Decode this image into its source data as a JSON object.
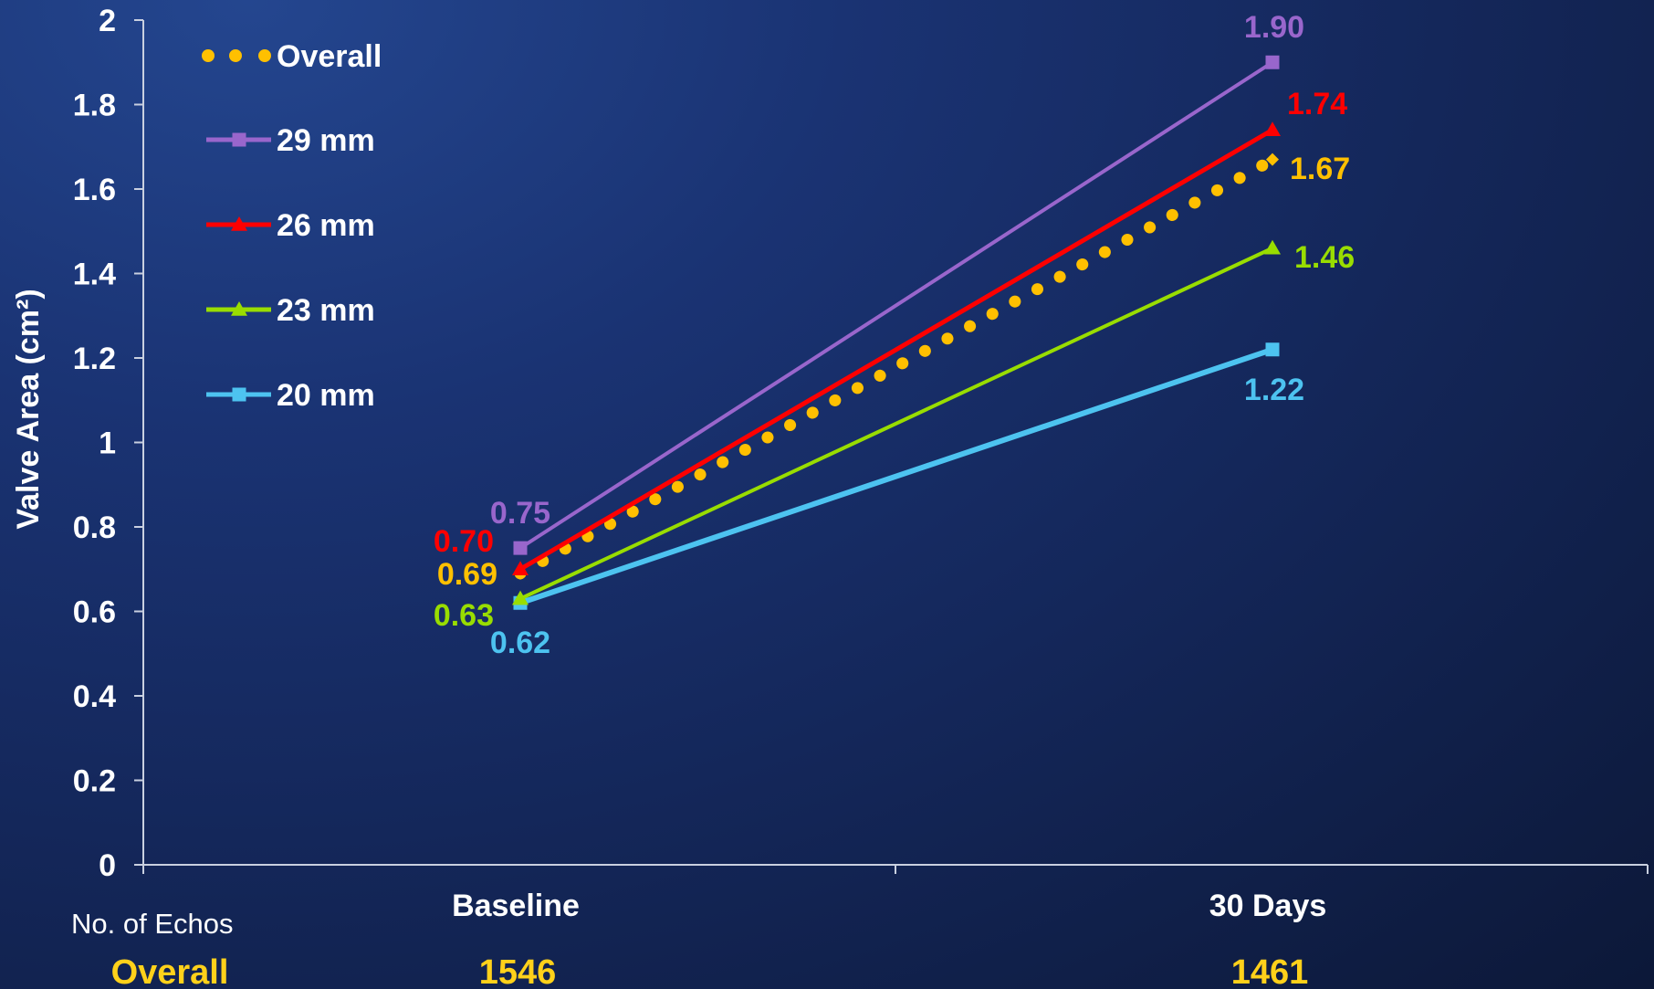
{
  "chart_data": {
    "type": "line",
    "categories": [
      "Baseline",
      "30 Days"
    ],
    "ylabel": "Valve Area (cm²)",
    "ylim": [
      0,
      2
    ],
    "yticks": [
      "0",
      "0.2",
      "0.4",
      "0.6",
      "0.8",
      "1",
      "1.2",
      "1.4",
      "1.6",
      "1.8",
      "2"
    ],
    "grid": false,
    "legend_position": "top-left",
    "series": [
      {
        "name": "Overall",
        "color": "#ffc000",
        "style": "dotted",
        "marker": "diamond",
        "values": [
          0.69,
          1.67
        ],
        "labels": [
          "0.69",
          "1.67"
        ]
      },
      {
        "name": "29 mm",
        "color": "#9966cc",
        "style": "solid",
        "marker": "square",
        "values": [
          0.75,
          1.9
        ],
        "labels": [
          "0.75",
          "1.90"
        ]
      },
      {
        "name": "26 mm",
        "color": "#ff0000",
        "style": "solid",
        "marker": "triangle",
        "values": [
          0.7,
          1.74
        ],
        "labels": [
          "0.70",
          "1.74"
        ]
      },
      {
        "name": "23 mm",
        "color": "#99dd00",
        "style": "solid",
        "marker": "triangle",
        "values": [
          0.63,
          1.46
        ],
        "labels": [
          "0.63",
          "1.46"
        ]
      },
      {
        "name": "20 mm",
        "color": "#4dc3f0",
        "style": "solid",
        "marker": "square",
        "values": [
          0.62,
          1.22
        ],
        "labels": [
          "0.62",
          "1.22"
        ]
      }
    ]
  },
  "echo_table": {
    "heading": "No. of Echos",
    "row_label": "Overall",
    "values": [
      "1546",
      "1461"
    ],
    "value_color": "#ffd11a"
  }
}
